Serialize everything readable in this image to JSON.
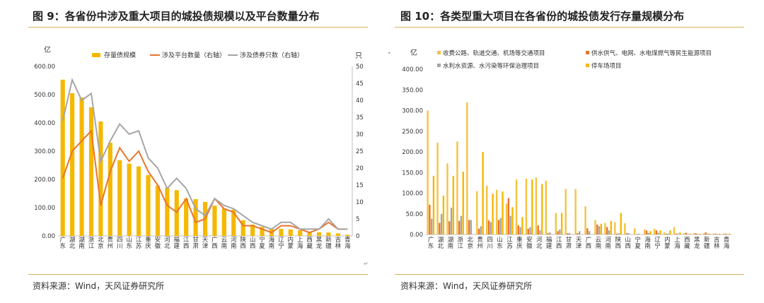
{
  "left": {
    "title": "图 9：各省份中涉及重大项目的城投债规模以及平台数量分布",
    "source": "资料来源：Wind，天风证券研究所",
    "chart_data": {
      "type": "bar",
      "categories": [
        "广东",
        "湖北",
        "湖南",
        "浙江",
        "北京",
        "贵州",
        "四川",
        "山东",
        "江苏",
        "重庆",
        "安徽",
        "河北",
        "福建",
        "江西",
        "甘肃",
        "天津",
        "广西",
        "云南",
        "河南",
        "陕西",
        "山西",
        "宁夏",
        "海南",
        "辽宁",
        "内蒙",
        "上海",
        "西藏",
        "黑龙",
        "新疆",
        "吉林",
        "青海"
      ],
      "series": [
        {
          "name": "存量债规模",
          "type": "bar",
          "axis": "left",
          "color": "#f5b800",
          "values": [
            553,
            505,
            490,
            455,
            405,
            330,
            268,
            256,
            246,
            215,
            178,
            170,
            162,
            132,
            130,
            120,
            107,
            97,
            93,
            55,
            40,
            32,
            25,
            25,
            23,
            20,
            14,
            13,
            12,
            9,
            4
          ]
        },
        {
          "name": "涉及平台数量（右轴）",
          "type": "line",
          "axis": "right",
          "color": "#e8752e",
          "values": [
            17,
            25,
            28,
            31,
            9,
            19,
            26,
            22,
            25,
            19,
            15,
            9,
            7,
            11,
            4,
            5,
            11,
            8,
            7,
            3,
            3,
            2,
            1,
            3,
            3,
            2,
            1,
            2,
            4,
            2,
            2
          ]
        },
        {
          "name": "涉及债券只数（右轴）",
          "type": "line",
          "axis": "right",
          "color": "#a6a6a6",
          "values": [
            34,
            46,
            40,
            42,
            22,
            28,
            33,
            30,
            31,
            23,
            20,
            14,
            17,
            14,
            8,
            6,
            11,
            9,
            8,
            6,
            4,
            3,
            2,
            4,
            4,
            2,
            2,
            2,
            5,
            2,
            2
          ]
        }
      ],
      "ylabel": "亿",
      "y2label": "只",
      "ylim": [
        0,
        600
      ],
      "y2lim": [
        0,
        50
      ],
      "yticks": [
        "600.00",
        "500.00",
        "400.00",
        "300.00",
        "200.00",
        "100.00",
        "0.00"
      ],
      "y2ticks": [
        "50",
        "45",
        "40",
        "35",
        "30",
        "25",
        "20",
        "15",
        "10",
        "5",
        "0"
      ],
      "legend_position": "top"
    }
  },
  "right": {
    "title": "图 10：各类型重大项目在各省份的城投债发行存量规模分布",
    "source": "资料来源：Wind，天风证券研究所",
    "chart_data": {
      "type": "bar",
      "categories": [
        "广东",
        "湖北",
        "湖南",
        "浙江",
        "北京",
        "贵州",
        "四川",
        "山东",
        "江苏",
        "重庆",
        "安徽",
        "河北",
        "福建",
        "江西",
        "甘肃",
        "天津",
        "广西",
        "云南",
        "河南",
        "陕西",
        "山西",
        "宁夏",
        "海南",
        "辽宁",
        "内蒙",
        "上海",
        "西藏",
        "黑龙",
        "新疆",
        "吉林",
        "青海"
      ],
      "series": [
        {
          "name": "收费公路、轨道交通、机场等交通项目",
          "color": "#f5c242",
          "values": [
            300,
            222,
            172,
            225,
            320,
            105,
            118,
            108,
            75,
            133,
            135,
            138,
            130,
            52,
            110,
            110,
            68,
            35,
            28,
            30,
            27,
            15,
            12,
            14,
            5,
            18,
            3,
            3,
            3,
            2,
            2
          ]
        },
        {
          "name": "供水供气、电网、水电煤燃气等民生能源项目",
          "color": "#e8752e",
          "values": [
            72,
            28,
            32,
            33,
            35,
            14,
            34,
            35,
            88,
            22,
            14,
            22,
            3,
            8,
            3,
            3,
            15,
            24,
            18,
            2,
            3,
            1,
            10,
            10,
            2,
            2,
            4,
            3,
            5,
            2,
            2
          ]
        },
        {
          "name": "水利水资源、水污染等环保治理项目",
          "color": "#a6a6a6",
          "values": [
            38,
            50,
            65,
            45,
            35,
            20,
            30,
            40,
            45,
            18,
            18,
            10,
            5,
            12,
            3,
            8,
            8,
            20,
            10,
            3,
            3,
            2,
            4,
            4,
            2,
            2,
            1,
            1,
            2,
            1,
            1
          ]
        },
        {
          "name": "停车场项目",
          "color": "#f5b800",
          "values": [
            142,
            94,
            142,
            152,
            0,
            200,
            99,
            104,
            66,
            42,
            133,
            122,
            0,
            52,
            0,
            0,
            0,
            26,
            33,
            52,
            0,
            0,
            8,
            10,
            10,
            5,
            2,
            2,
            2,
            2,
            2
          ]
        }
      ],
      "ylabel": "亿",
      "ylim": [
        0,
        400
      ],
      "yticks": [
        "400.00",
        "350.00",
        "300.00",
        "250.00",
        "200.00",
        "150.00",
        "100.00",
        "50.00",
        "0.00"
      ],
      "legend_position": "top"
    }
  }
}
